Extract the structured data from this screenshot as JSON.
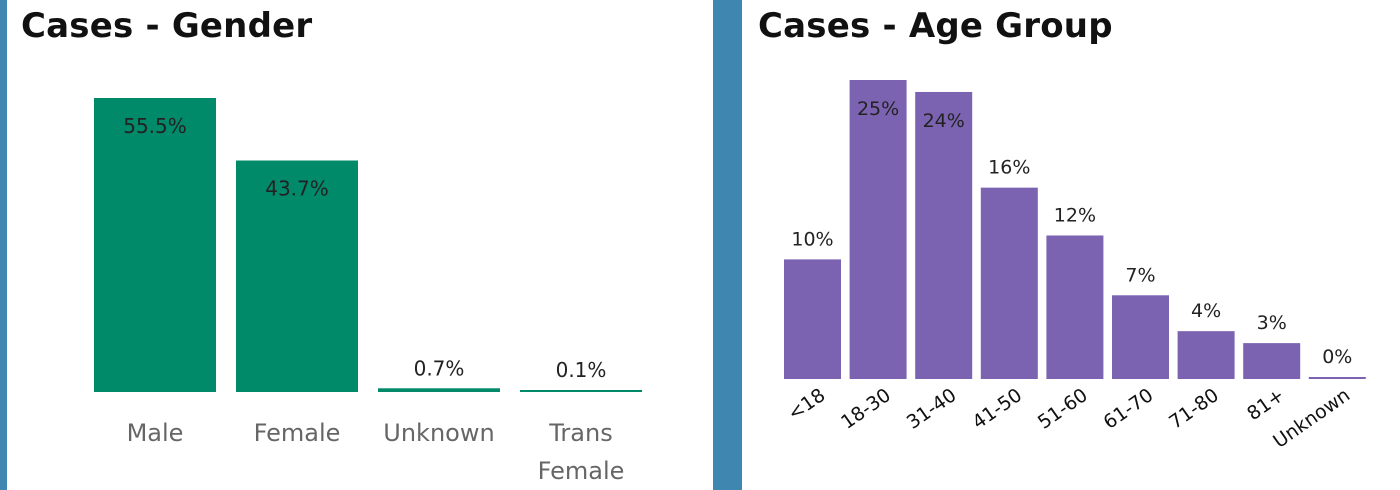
{
  "chart_data": [
    {
      "type": "bar",
      "title": "Cases - Gender",
      "categories": [
        "Male",
        "Female",
        "Unknown",
        "Trans Female"
      ],
      "values": [
        55.5,
        43.7,
        0.7,
        0.1
      ],
      "labels": [
        "55.5%",
        "43.7%",
        "0.7%",
        "0.1%"
      ],
      "color": "#008a6a",
      "ylim": [
        0,
        55.5
      ]
    },
    {
      "type": "bar",
      "title": "Cases - Age Group",
      "categories": [
        "<18",
        "18-30",
        "31-40",
        "41-50",
        "51-60",
        "61-70",
        "71-80",
        "81+",
        "Unknown"
      ],
      "values": [
        10,
        25,
        24,
        16,
        12,
        7,
        4,
        3,
        0
      ],
      "labels": [
        "10%",
        "25%",
        "24%",
        "16%",
        "12%",
        "7%",
        "4%",
        "3%",
        "0%"
      ],
      "color": "#7b63b2",
      "ylim": [
        0,
        25
      ]
    }
  ]
}
